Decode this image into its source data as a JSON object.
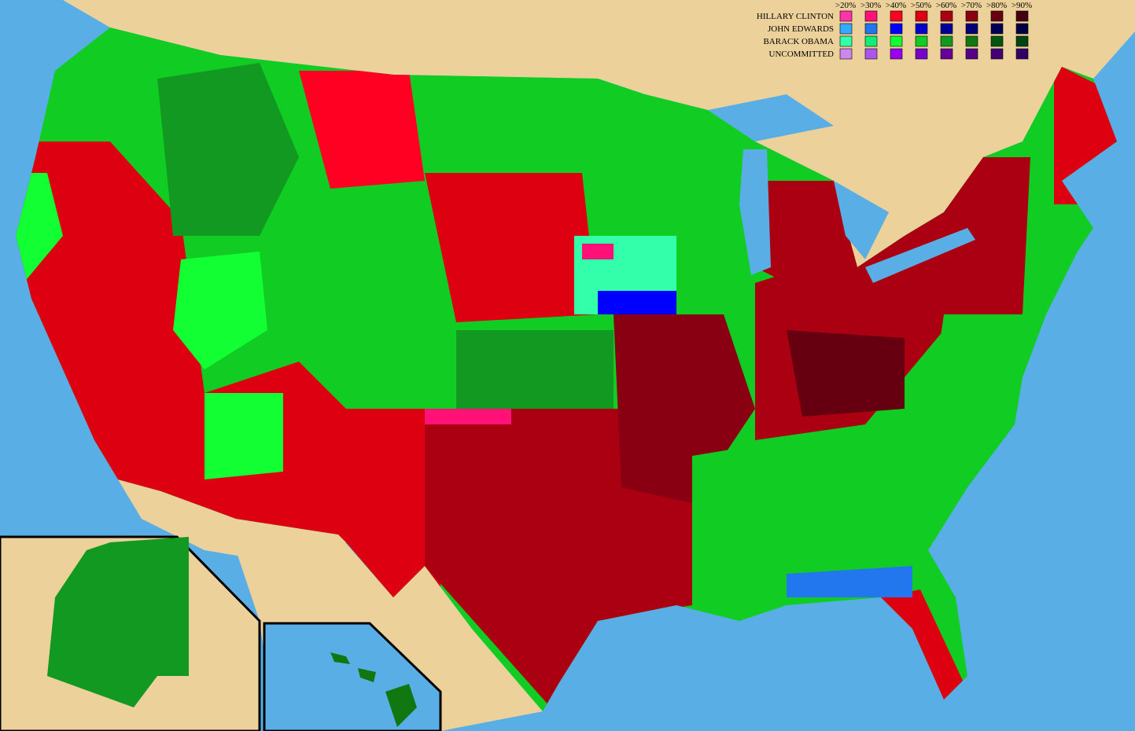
{
  "legend": {
    "thresholds": [
      ">20%",
      ">30%",
      ">40%",
      ">50%",
      ">60%",
      ">70%",
      ">80%",
      ">90%"
    ],
    "rows": [
      {
        "name": "HILLARY CLINTON",
        "colors": [
          "#ff33aa",
          "#ff1177",
          "#ff0022",
          "#dd0011",
          "#aa0011",
          "#880011",
          "#660011",
          "#440011"
        ]
      },
      {
        "name": "JOHN EDWARDS",
        "colors": [
          "#33aaff",
          "#2277ee",
          "#0000ff",
          "#0000cc",
          "#000099",
          "#000077",
          "#000055",
          "#000044"
        ]
      },
      {
        "name": "BARACK OBAMA",
        "colors": [
          "#33ffaa",
          "#11ee77",
          "#11ff33",
          "#11cc22",
          "#119922",
          "#117711",
          "#005511",
          "#004411"
        ]
      },
      {
        "name": "UNCOMMITTED",
        "colors": [
          "#cc88ee",
          "#aa55ee",
          "#9900ee",
          "#7700cc",
          "#660099",
          "#550088",
          "#440077",
          "#330066"
        ]
      }
    ]
  }
}
